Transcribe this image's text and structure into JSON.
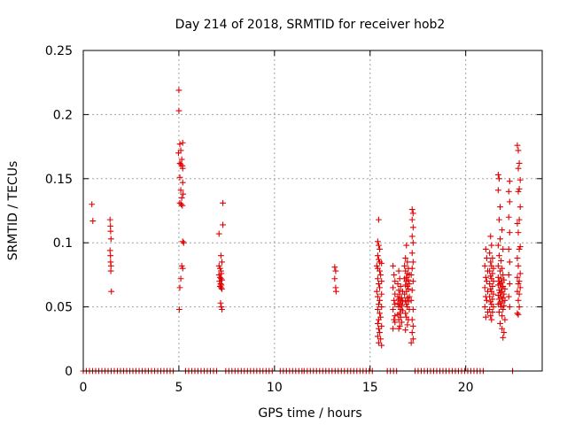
{
  "chart_data": {
    "type": "scatter",
    "title": "Day 214 of 2018, SRMTID for receiver hob2",
    "xlabel": "GPS time / hours",
    "ylabel": "SRMTID / TECUs",
    "xlim": [
      0,
      24
    ],
    "ylim": [
      0,
      0.25
    ],
    "x_ticks": [
      0,
      5,
      10,
      15,
      20
    ],
    "y_ticks": [
      0,
      0.05,
      0.1,
      0.15,
      0.2,
      0.25
    ],
    "y_tick_labels": [
      "0",
      "0.05",
      "0.1",
      "0.15",
      "0.2",
      "0.25"
    ],
    "grid": true,
    "marker": "+",
    "color": "#e00000",
    "zero_value_intervals": [
      [
        0.0,
        4.85
      ],
      [
        5.35,
        7.05
      ],
      [
        7.45,
        10.0
      ],
      [
        10.3,
        11.5
      ],
      [
        11.55,
        15.25
      ],
      [
        15.9,
        16.4
      ],
      [
        17.35,
        21.05
      ],
      [
        22.45,
        22.6
      ]
    ],
    "series": [
      {
        "name": "SRMTID",
        "points": [
          [
            0.45,
            0.13
          ],
          [
            0.5,
            0.117
          ],
          [
            1.4,
            0.118
          ],
          [
            1.42,
            0.113
          ],
          [
            1.43,
            0.109
          ],
          [
            1.45,
            0.103
          ],
          [
            1.4,
            0.094
          ],
          [
            1.42,
            0.09
          ],
          [
            1.43,
            0.085
          ],
          [
            1.45,
            0.082
          ],
          [
            1.44,
            0.078
          ],
          [
            1.47,
            0.062
          ],
          [
            5.0,
            0.219
          ],
          [
            5.0,
            0.203
          ],
          [
            5.05,
            0.177
          ],
          [
            5.2,
            0.178
          ],
          [
            5.1,
            0.172
          ],
          [
            4.98,
            0.17
          ],
          [
            5.15,
            0.165
          ],
          [
            5.05,
            0.162
          ],
          [
            5.1,
            0.161
          ],
          [
            5.18,
            0.16
          ],
          [
            5.2,
            0.158
          ],
          [
            5.05,
            0.151
          ],
          [
            5.2,
            0.147
          ],
          [
            5.1,
            0.141
          ],
          [
            5.22,
            0.138
          ],
          [
            5.15,
            0.135
          ],
          [
            5.05,
            0.131
          ],
          [
            5.12,
            0.13
          ],
          [
            5.18,
            0.129
          ],
          [
            5.2,
            0.101
          ],
          [
            5.25,
            0.1
          ],
          [
            5.15,
            0.082
          ],
          [
            5.2,
            0.08
          ],
          [
            5.1,
            0.072
          ],
          [
            5.05,
            0.065
          ],
          [
            5.02,
            0.048
          ],
          [
            7.1,
            0.107
          ],
          [
            7.3,
            0.131
          ],
          [
            7.3,
            0.114
          ],
          [
            7.2,
            0.09
          ],
          [
            7.25,
            0.085
          ],
          [
            7.1,
            0.082
          ],
          [
            7.15,
            0.08
          ],
          [
            7.2,
            0.078
          ],
          [
            7.22,
            0.076
          ],
          [
            7.1,
            0.075
          ],
          [
            7.15,
            0.073
          ],
          [
            7.2,
            0.072
          ],
          [
            7.25,
            0.071
          ],
          [
            7.12,
            0.07
          ],
          [
            7.18,
            0.068
          ],
          [
            7.22,
            0.067
          ],
          [
            7.15,
            0.066
          ],
          [
            7.2,
            0.065
          ],
          [
            7.25,
            0.064
          ],
          [
            7.18,
            0.053
          ],
          [
            7.22,
            0.05
          ],
          [
            7.25,
            0.048
          ],
          [
            13.15,
            0.081
          ],
          [
            13.2,
            0.078
          ],
          [
            13.15,
            0.072
          ],
          [
            13.2,
            0.065
          ],
          [
            13.22,
            0.062
          ],
          [
            15.45,
            0.118
          ],
          [
            15.4,
            0.101
          ],
          [
            15.45,
            0.098
          ],
          [
            15.5,
            0.095
          ],
          [
            15.4,
            0.09
          ],
          [
            15.45,
            0.087
          ],
          [
            15.5,
            0.085
          ],
          [
            15.6,
            0.084
          ],
          [
            15.35,
            0.082
          ],
          [
            15.4,
            0.08
          ],
          [
            15.5,
            0.078
          ],
          [
            15.55,
            0.075
          ],
          [
            15.4,
            0.072
          ],
          [
            15.6,
            0.07
          ],
          [
            15.45,
            0.068
          ],
          [
            15.5,
            0.065
          ],
          [
            15.35,
            0.062
          ],
          [
            15.6,
            0.06
          ],
          [
            15.4,
            0.058
          ],
          [
            15.5,
            0.055
          ],
          [
            15.45,
            0.052
          ],
          [
            15.6,
            0.05
          ],
          [
            15.4,
            0.048
          ],
          [
            15.5,
            0.045
          ],
          [
            15.55,
            0.042
          ],
          [
            15.45,
            0.04
          ],
          [
            15.4,
            0.037
          ],
          [
            15.6,
            0.035
          ],
          [
            15.45,
            0.033
          ],
          [
            15.5,
            0.03
          ],
          [
            15.4,
            0.027
          ],
          [
            15.55,
            0.025
          ],
          [
            15.45,
            0.022
          ],
          [
            15.6,
            0.02
          ],
          [
            16.2,
            0.082
          ],
          [
            16.25,
            0.075
          ],
          [
            16.3,
            0.07
          ],
          [
            16.2,
            0.065
          ],
          [
            16.3,
            0.06
          ],
          [
            16.25,
            0.055
          ],
          [
            16.3,
            0.052
          ],
          [
            16.2,
            0.048
          ],
          [
            16.3,
            0.043
          ],
          [
            16.25,
            0.04
          ],
          [
            16.3,
            0.038
          ],
          [
            16.2,
            0.033
          ],
          [
            16.5,
            0.078
          ],
          [
            16.55,
            0.072
          ],
          [
            16.45,
            0.068
          ],
          [
            16.6,
            0.066
          ],
          [
            16.5,
            0.063
          ],
          [
            16.7,
            0.062
          ],
          [
            16.55,
            0.06
          ],
          [
            16.45,
            0.058
          ],
          [
            16.65,
            0.057
          ],
          [
            16.5,
            0.056
          ],
          [
            16.6,
            0.055
          ],
          [
            16.7,
            0.054
          ],
          [
            16.45,
            0.053
          ],
          [
            16.55,
            0.052
          ],
          [
            16.65,
            0.051
          ],
          [
            16.5,
            0.05
          ],
          [
            16.6,
            0.048
          ],
          [
            16.7,
            0.047
          ],
          [
            16.55,
            0.045
          ],
          [
            16.45,
            0.044
          ],
          [
            16.6,
            0.042
          ],
          [
            16.5,
            0.04
          ],
          [
            16.65,
            0.038
          ],
          [
            16.55,
            0.035
          ],
          [
            16.5,
            0.033
          ],
          [
            16.9,
            0.098
          ],
          [
            16.85,
            0.088
          ],
          [
            16.95,
            0.085
          ],
          [
            16.8,
            0.082
          ],
          [
            17.0,
            0.08
          ],
          [
            16.85,
            0.078
          ],
          [
            16.95,
            0.076
          ],
          [
            17.05,
            0.075
          ],
          [
            16.9,
            0.073
          ],
          [
            16.8,
            0.072
          ],
          [
            17.0,
            0.071
          ],
          [
            16.9,
            0.07
          ],
          [
            17.05,
            0.068
          ],
          [
            16.85,
            0.067
          ],
          [
            16.95,
            0.066
          ],
          [
            17.0,
            0.064
          ],
          [
            16.9,
            0.062
          ],
          [
            16.8,
            0.06
          ],
          [
            17.05,
            0.058
          ],
          [
            16.95,
            0.057
          ],
          [
            16.85,
            0.055
          ],
          [
            17.0,
            0.054
          ],
          [
            16.9,
            0.052
          ],
          [
            16.95,
            0.05
          ],
          [
            17.05,
            0.048
          ],
          [
            16.85,
            0.045
          ],
          [
            16.9,
            0.042
          ],
          [
            17.0,
            0.04
          ],
          [
            16.95,
            0.036
          ],
          [
            16.85,
            0.032
          ],
          [
            17.2,
            0.126
          ],
          [
            17.25,
            0.123
          ],
          [
            17.2,
            0.118
          ],
          [
            17.25,
            0.112
          ],
          [
            17.2,
            0.105
          ],
          [
            17.25,
            0.1
          ],
          [
            17.2,
            0.092
          ],
          [
            17.25,
            0.085
          ],
          [
            17.2,
            0.08
          ],
          [
            17.15,
            0.075
          ],
          [
            17.25,
            0.07
          ],
          [
            17.2,
            0.063
          ],
          [
            17.15,
            0.055
          ],
          [
            17.25,
            0.048
          ],
          [
            17.2,
            0.04
          ],
          [
            17.25,
            0.035
          ],
          [
            17.2,
            0.03
          ],
          [
            17.25,
            0.025
          ],
          [
            17.15,
            0.022
          ],
          [
            21.05,
            0.095
          ],
          [
            21.1,
            0.088
          ],
          [
            21.0,
            0.082
          ],
          [
            21.15,
            0.078
          ],
          [
            21.05,
            0.073
          ],
          [
            21.1,
            0.07
          ],
          [
            21.0,
            0.065
          ],
          [
            21.15,
            0.062
          ],
          [
            21.05,
            0.058
          ],
          [
            21.1,
            0.055
          ],
          [
            21.0,
            0.05
          ],
          [
            21.15,
            0.046
          ],
          [
            21.05,
            0.042
          ],
          [
            21.3,
            0.105
          ],
          [
            21.35,
            0.098
          ],
          [
            21.25,
            0.092
          ],
          [
            21.4,
            0.088
          ],
          [
            21.3,
            0.085
          ],
          [
            21.35,
            0.082
          ],
          [
            21.45,
            0.08
          ],
          [
            21.25,
            0.078
          ],
          [
            21.4,
            0.076
          ],
          [
            21.3,
            0.074
          ],
          [
            21.35,
            0.072
          ],
          [
            21.45,
            0.07
          ],
          [
            21.25,
            0.068
          ],
          [
            21.4,
            0.066
          ],
          [
            21.3,
            0.064
          ],
          [
            21.35,
            0.062
          ],
          [
            21.45,
            0.06
          ],
          [
            21.25,
            0.058
          ],
          [
            21.4,
            0.056
          ],
          [
            21.3,
            0.054
          ],
          [
            21.35,
            0.052
          ],
          [
            21.45,
            0.05
          ],
          [
            21.25,
            0.048
          ],
          [
            21.4,
            0.046
          ],
          [
            21.3,
            0.043
          ],
          [
            21.35,
            0.04
          ],
          [
            21.7,
            0.153
          ],
          [
            21.75,
            0.15
          ],
          [
            21.7,
            0.141
          ],
          [
            21.8,
            0.128
          ],
          [
            21.75,
            0.118
          ],
          [
            21.9,
            0.11
          ],
          [
            21.8,
            0.103
          ],
          [
            21.7,
            0.098
          ],
          [
            21.95,
            0.095
          ],
          [
            21.75,
            0.09
          ],
          [
            21.85,
            0.086
          ],
          [
            21.7,
            0.082
          ],
          [
            21.9,
            0.08
          ],
          [
            21.8,
            0.078
          ],
          [
            21.95,
            0.075
          ],
          [
            21.7,
            0.073
          ],
          [
            21.85,
            0.072
          ],
          [
            22.0,
            0.071
          ],
          [
            21.75,
            0.07
          ],
          [
            21.9,
            0.069
          ],
          [
            21.8,
            0.068
          ],
          [
            21.7,
            0.067
          ],
          [
            21.95,
            0.066
          ],
          [
            21.85,
            0.065
          ],
          [
            22.05,
            0.064
          ],
          [
            21.75,
            0.063
          ],
          [
            21.9,
            0.062
          ],
          [
            21.8,
            0.061
          ],
          [
            22.0,
            0.06
          ],
          [
            21.7,
            0.059
          ],
          [
            21.85,
            0.058
          ],
          [
            21.95,
            0.057
          ],
          [
            21.75,
            0.056
          ],
          [
            22.05,
            0.055
          ],
          [
            21.9,
            0.054
          ],
          [
            21.8,
            0.053
          ],
          [
            21.7,
            0.052
          ],
          [
            22.0,
            0.051
          ],
          [
            21.85,
            0.05
          ],
          [
            21.95,
            0.048
          ],
          [
            21.75,
            0.046
          ],
          [
            21.9,
            0.043
          ],
          [
            22.05,
            0.04
          ],
          [
            21.8,
            0.037
          ],
          [
            21.9,
            0.033
          ],
          [
            22.0,
            0.03
          ],
          [
            21.95,
            0.026
          ],
          [
            22.3,
            0.148
          ],
          [
            22.25,
            0.14
          ],
          [
            22.3,
            0.132
          ],
          [
            22.25,
            0.12
          ],
          [
            22.3,
            0.108
          ],
          [
            22.25,
            0.095
          ],
          [
            22.3,
            0.085
          ],
          [
            22.25,
            0.075
          ],
          [
            22.3,
            0.068
          ],
          [
            22.25,
            0.058
          ],
          [
            22.3,
            0.05
          ],
          [
            22.7,
            0.176
          ],
          [
            22.75,
            0.172
          ],
          [
            22.8,
            0.162
          ],
          [
            22.75,
            0.158
          ],
          [
            22.85,
            0.149
          ],
          [
            22.8,
            0.142
          ],
          [
            22.75,
            0.14
          ],
          [
            22.85,
            0.128
          ],
          [
            22.8,
            0.118
          ],
          [
            22.7,
            0.115
          ],
          [
            22.75,
            0.108
          ],
          [
            22.85,
            0.097
          ],
          [
            22.8,
            0.095
          ],
          [
            22.7,
            0.088
          ],
          [
            22.75,
            0.082
          ],
          [
            22.85,
            0.076
          ],
          [
            22.7,
            0.073
          ],
          [
            22.8,
            0.07
          ],
          [
            22.75,
            0.068
          ],
          [
            22.85,
            0.065
          ],
          [
            22.7,
            0.062
          ],
          [
            22.8,
            0.06
          ],
          [
            22.75,
            0.055
          ],
          [
            22.8,
            0.05
          ],
          [
            22.7,
            0.045
          ],
          [
            22.75,
            0.044
          ]
        ]
      }
    ]
  }
}
